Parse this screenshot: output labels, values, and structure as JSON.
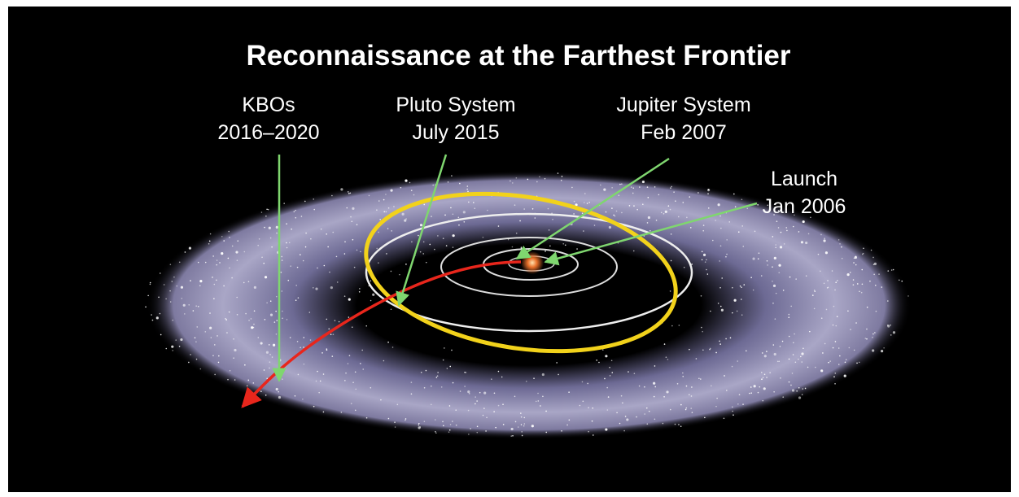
{
  "title": "Reconnaissance at the Farthest Frontier",
  "labels": [
    {
      "line1": "KBOs",
      "line2": "2016–2020"
    },
    {
      "line1": "Pluto System",
      "line2": "July 2015"
    },
    {
      "line1": "Jupiter System",
      "line2": "Feb 2007"
    },
    {
      "line1": "Launch",
      "line2": "Jan 2006"
    }
  ]
}
